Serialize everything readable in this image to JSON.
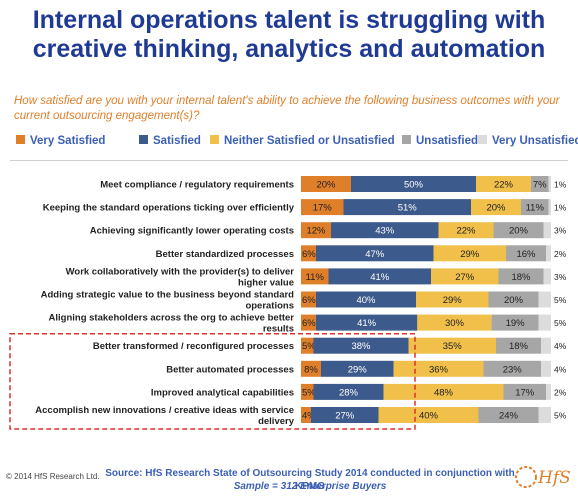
{
  "title_line1": "Internal operations talent is struggling with",
  "title_line2": "creative thinking, analytics and automation",
  "subtitle": "How satisfied are you with your internal talent's ability to achieve the following business outcomes with your current outsourcing engagement(s)?",
  "footer": {
    "copyright": "© 2014 HfS Research Ltd.",
    "source": "Source: HfS Research State of Outsourcing Study 2014 conducted in conjunction with KPMG",
    "sample": "Sample = 312 Enterprise Buyers",
    "logo_text": "HfS"
  },
  "colors": {
    "very_satisfied": "#e07f2a",
    "satisfied": "#3d5a8c",
    "neither": "#f0c04a",
    "unsatisfied": "#a6a6a6",
    "very_unsatisfied": "#dcdcdc",
    "highlight_box": "#d9342b",
    "title": "#1f3a93"
  },
  "chart_data": {
    "type": "bar",
    "orientation": "horizontal",
    "stacked": true,
    "legend_position": "top",
    "xlim": [
      0,
      100
    ],
    "categories": [
      "Meet compliance / regulatory requirements",
      "Keeping the standard operations ticking over efficiently",
      "Achieving significantly lower operating costs",
      "Better standardized processes",
      "Work collaboratively with the provider(s) to deliver higher value",
      "Adding strategic value to the business beyond standard operations",
      "Aligning stakeholders across the org to achieve better results",
      "Better transformed / reconfigured processes",
      "Better automated processes",
      "Improved analytical capabilities",
      "Accomplish new innovations / creative ideas with service delivery"
    ],
    "series": [
      {
        "name": "Very Satisfied",
        "values": [
          20,
          17,
          12,
          6,
          11,
          6,
          6,
          5,
          8,
          5,
          4
        ]
      },
      {
        "name": "Satisfied",
        "values": [
          50,
          51,
          43,
          47,
          41,
          40,
          41,
          38,
          29,
          28,
          27
        ]
      },
      {
        "name": "Neither Satisfied or Unsatisfied",
        "values": [
          22,
          20,
          22,
          29,
          27,
          29,
          30,
          35,
          36,
          48,
          40
        ]
      },
      {
        "name": "Unsatisfied",
        "values": [
          7,
          11,
          20,
          16,
          18,
          20,
          19,
          18,
          23,
          17,
          24
        ]
      },
      {
        "name": "Very Unsatisfied",
        "values": [
          1,
          1,
          3,
          2,
          3,
          5,
          5,
          4,
          4,
          2,
          5
        ]
      }
    ],
    "highlighted_rows": [
      7,
      8,
      9,
      10
    ]
  }
}
